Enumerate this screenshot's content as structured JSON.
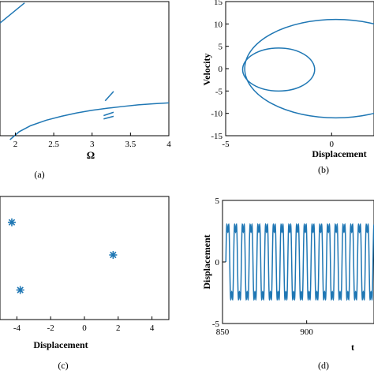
{
  "colors": {
    "series": "#1f77b4",
    "axis": "#000000"
  },
  "chart_data": [
    {
      "panel": "a",
      "type": "line",
      "caption": "(a)",
      "xlabel": "Ω",
      "ylabel": "",
      "xlim": [
        1.8,
        4.0
      ],
      "ylim": [
        0,
        10
      ],
      "xticks": [
        "2",
        "2.5",
        "3",
        "3.5",
        "4"
      ],
      "xtick_values": [
        2,
        2.5,
        3,
        3.5,
        4
      ],
      "series": [
        {
          "x": [
            1.8,
            2.12
          ],
          "y": [
            8.4,
            9.9
          ]
        },
        {
          "x": [
            1.93,
            2.05,
            2.2,
            2.4,
            2.6,
            2.8,
            3.0,
            3.2,
            3.25,
            3.4,
            3.6,
            3.8,
            4.0
          ],
          "y": [
            -0.3,
            0.3,
            0.75,
            1.15,
            1.45,
            1.7,
            1.9,
            2.05,
            2.08,
            2.18,
            2.3,
            2.38,
            2.45
          ]
        },
        {
          "x": [
            3.15,
            3.28
          ],
          "y": [
            1.5,
            1.75
          ]
        },
        {
          "x": [
            3.15,
            3.28
          ],
          "y": [
            1.25,
            1.45
          ]
        },
        {
          "x": [
            3.17,
            3.28
          ],
          "y": [
            2.6,
            3.3
          ]
        }
      ]
    },
    {
      "panel": "b",
      "type": "line",
      "caption": "(b)",
      "xlabel": "Displacement",
      "ylabel": "Velocity",
      "xlim": [
        -5,
        2
      ],
      "ylim": [
        -15,
        15
      ],
      "xticks": [
        "-5",
        "0"
      ],
      "xtick_values": [
        -5,
        0
      ],
      "yticks": [
        "15",
        "10",
        "5",
        "0",
        "-5",
        "-10",
        "-15"
      ],
      "ytick_values": [
        15,
        10,
        5,
        0,
        -5,
        -10,
        -15
      ],
      "series": [
        {
          "shape": "ellipse",
          "cx": 0.2,
          "cy": 0,
          "rx": 4.3,
          "ry": 11
        },
        {
          "shape": "ellipse",
          "cx": -2.5,
          "cy": -0.2,
          "rx": 1.7,
          "ry": 4.8
        }
      ]
    },
    {
      "panel": "c",
      "type": "scatter",
      "caption": "(c)",
      "xlabel": "Displacement",
      "ylabel": "",
      "xlim": [
        -5,
        5
      ],
      "ylim": [
        -10,
        10
      ],
      "xticks": [
        "-4",
        "-2",
        "0",
        "2",
        "4"
      ],
      "xtick_values": [
        -4,
        -2,
        0,
        2,
        4
      ],
      "points": [
        {
          "x": -4.3,
          "y": 5.8
        },
        {
          "x": -3.8,
          "y": -5.2
        },
        {
          "x": 1.7,
          "y": 0.5
        }
      ]
    },
    {
      "panel": "d",
      "type": "line",
      "caption": "(d)",
      "xlabel": "t",
      "ylabel": "Displacement",
      "xlim": [
        850,
        940
      ],
      "ylim": [
        -5,
        5
      ],
      "xticks": [
        "850",
        "900"
      ],
      "xtick_values": [
        850,
        900
      ],
      "yticks": [
        "5",
        "0",
        "-5"
      ],
      "ytick_values": [
        5,
        0,
        -5
      ],
      "signal": {
        "amplitude": 4.3,
        "period": 4.6,
        "harmonic_ratio": 0.28,
        "t_start": 852
      }
    }
  ]
}
